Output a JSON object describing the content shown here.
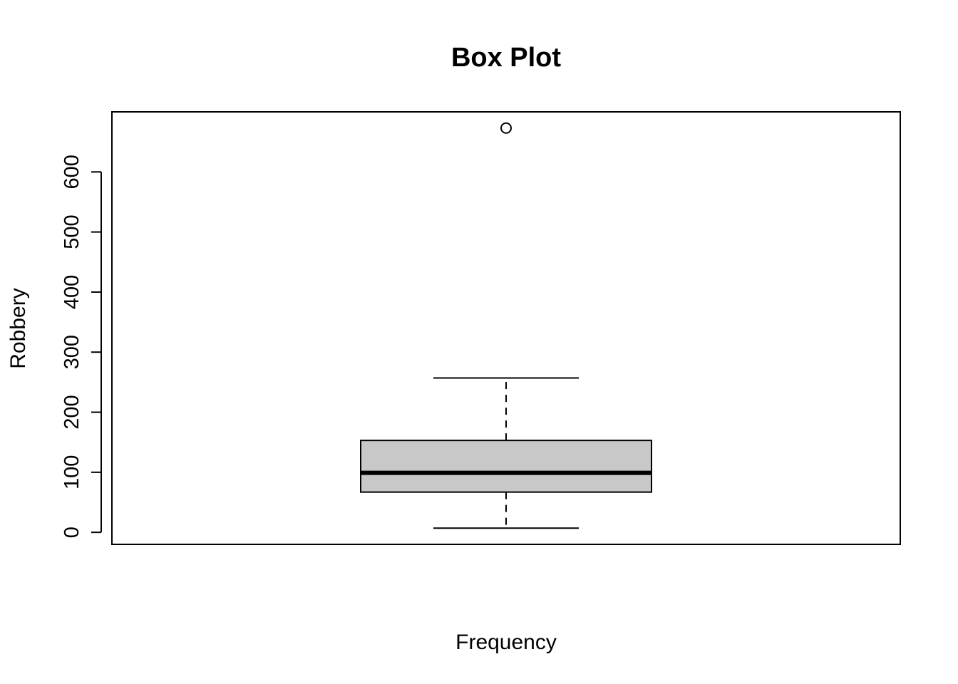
{
  "chart_data": {
    "type": "box",
    "title": "Box Plot",
    "xlabel": "Frequency",
    "ylabel": "Robbery",
    "ylim": [
      -20,
      700
    ],
    "yticks": [
      0,
      100,
      200,
      300,
      400,
      500,
      600
    ],
    "grid": false,
    "legend": "none",
    "box": {
      "whisker_low": 7,
      "q1": 67,
      "median": 99,
      "q3": 153,
      "whisker_high": 257,
      "outliers": [
        673
      ]
    },
    "colors": {
      "box_fill": "#c8c8c8",
      "stroke": "#000000"
    }
  }
}
